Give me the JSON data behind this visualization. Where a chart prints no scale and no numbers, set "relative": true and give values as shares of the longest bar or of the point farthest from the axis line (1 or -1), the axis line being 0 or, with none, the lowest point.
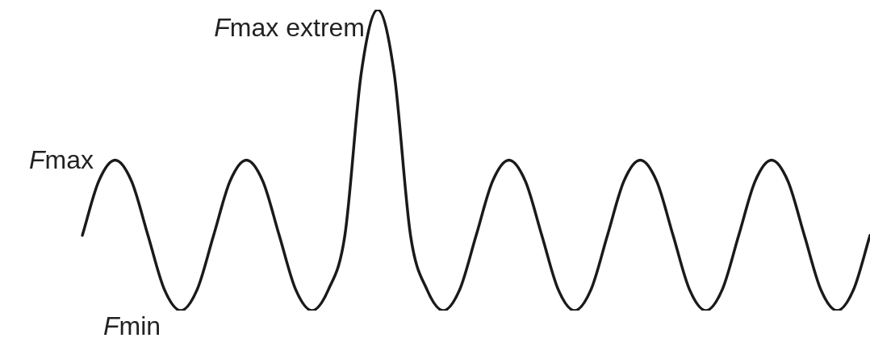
{
  "chart_data": {
    "type": "line",
    "relative": true,
    "categories": [
      null,
      null,
      null,
      null,
      null,
      null,
      null,
      null,
      null,
      null,
      null,
      null,
      null,
      null,
      null,
      null,
      null,
      null,
      null,
      null,
      null,
      null,
      null,
      null,
      null,
      null,
      null,
      null,
      null,
      null,
      null,
      null,
      null,
      null,
      null,
      null,
      null,
      null,
      null,
      null,
      null,
      null,
      null,
      null,
      null,
      null,
      null,
      null,
      null
    ],
    "series": [
      {
        "color": "#1a1a1a",
        "values": [
          0.25,
          0.43,
          0.5,
          0.43,
          0.25,
          0.07,
          0,
          0.07,
          0.25,
          0.43,
          0.5,
          0.43,
          0.25,
          0.07,
          0,
          0.07,
          0.25,
          0.79,
          1,
          0.79,
          0.25,
          0.07,
          0,
          0.07,
          0.25,
          0.43,
          0.5,
          0.43,
          0.25,
          0.07,
          0,
          0.07,
          0.25,
          0.43,
          0.5,
          0.43,
          0.25,
          0.07,
          0,
          0.07,
          0.25,
          0.43,
          0.5,
          0.43,
          0.25,
          0.07,
          0,
          0.07,
          0.25
        ]
      }
    ],
    "annotations": [
      "Fmax",
      "Fmin",
      "Fmax extrem"
    ],
    "marker": "none",
    "line_style": "solid",
    "legend": false
  }
}
